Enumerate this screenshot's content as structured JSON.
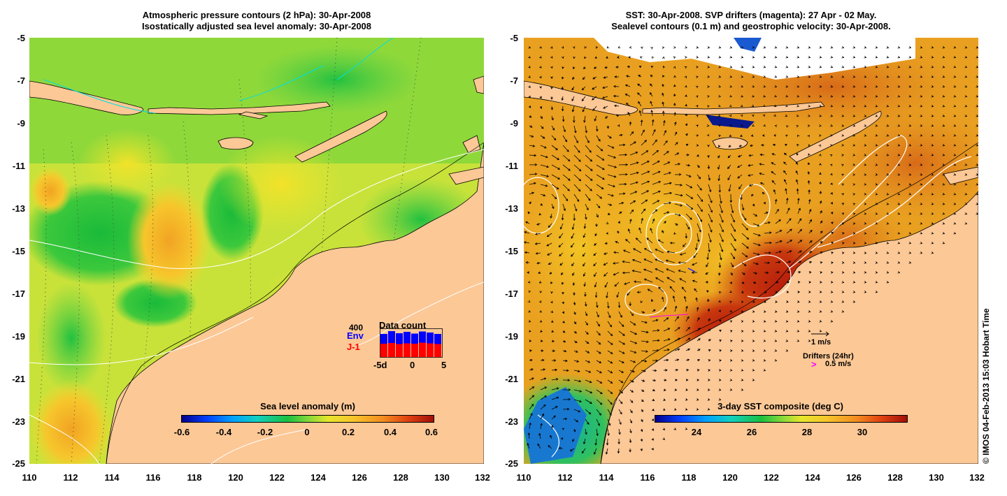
{
  "left_panel": {
    "title_line1": "Atmospheric pressure contours (2 hPa): 30-Apr-2008",
    "title_line2": "Isostatically adjusted sea level anomaly: 30-Apr-2008",
    "y_ticks": [
      "-5",
      "-7",
      "-9",
      "-11",
      "-13",
      "-15",
      "-17",
      "-19",
      "-21",
      "-23",
      "-25"
    ],
    "x_ticks": [
      "110",
      "112",
      "114",
      "116",
      "118",
      "120",
      "122",
      "124",
      "126",
      "128",
      "130",
      "132"
    ],
    "colorbar": {
      "title": "Sea level anomaly (m)",
      "ticks": [
        "-0.6",
        "-0.4",
        "-0.2",
        "0",
        "0.2",
        "0.4",
        "0.6"
      ],
      "range": [
        -0.6,
        0.6
      ]
    },
    "data_count": {
      "title": "Data count",
      "max_label": "400",
      "env_label": "Env",
      "j1_label": "J-1",
      "x_ticks": [
        "-5d",
        "0",
        "5"
      ],
      "env_color": "#0000ff",
      "j1_color": "#ff0000",
      "env_values": [
        330,
        370,
        340,
        360,
        335,
        365,
        350,
        330
      ],
      "j1_values": [
        190,
        200,
        185,
        195,
        190,
        205,
        195,
        185
      ]
    }
  },
  "right_panel": {
    "title_line1": "SST: 30-Apr-2008. SVP drifters (magenta): 27 Apr - 02 May.",
    "title_line2": "Sealevel contours (0.1 m) and geostrophic velocity: 30-Apr-2008.",
    "y_ticks": [
      "-5",
      "-7",
      "-9",
      "-11",
      "-13",
      "-15",
      "-17",
      "-19",
      "-21",
      "-23",
      "-25"
    ],
    "x_ticks": [
      "110",
      "112",
      "114",
      "116",
      "118",
      "120",
      "122",
      "124",
      "126",
      "128",
      "130",
      "132"
    ],
    "colorbar": {
      "title": "3-day SST composite (deg C)",
      "ticks": [
        "24",
        "26",
        "28",
        "30"
      ],
      "range": [
        22.8,
        31.6
      ]
    },
    "velocity_scale": "1 m/s",
    "drifters_label": "Drifters (24hr)",
    "drifter_scale": "0.5 m/s",
    "drifter_symbol": ">"
  },
  "credit": "© IMOS 04-Feb-2013 15:03 Hobart Time",
  "colors": {
    "land": "#fcc896",
    "drifter": "#ff00ff"
  }
}
